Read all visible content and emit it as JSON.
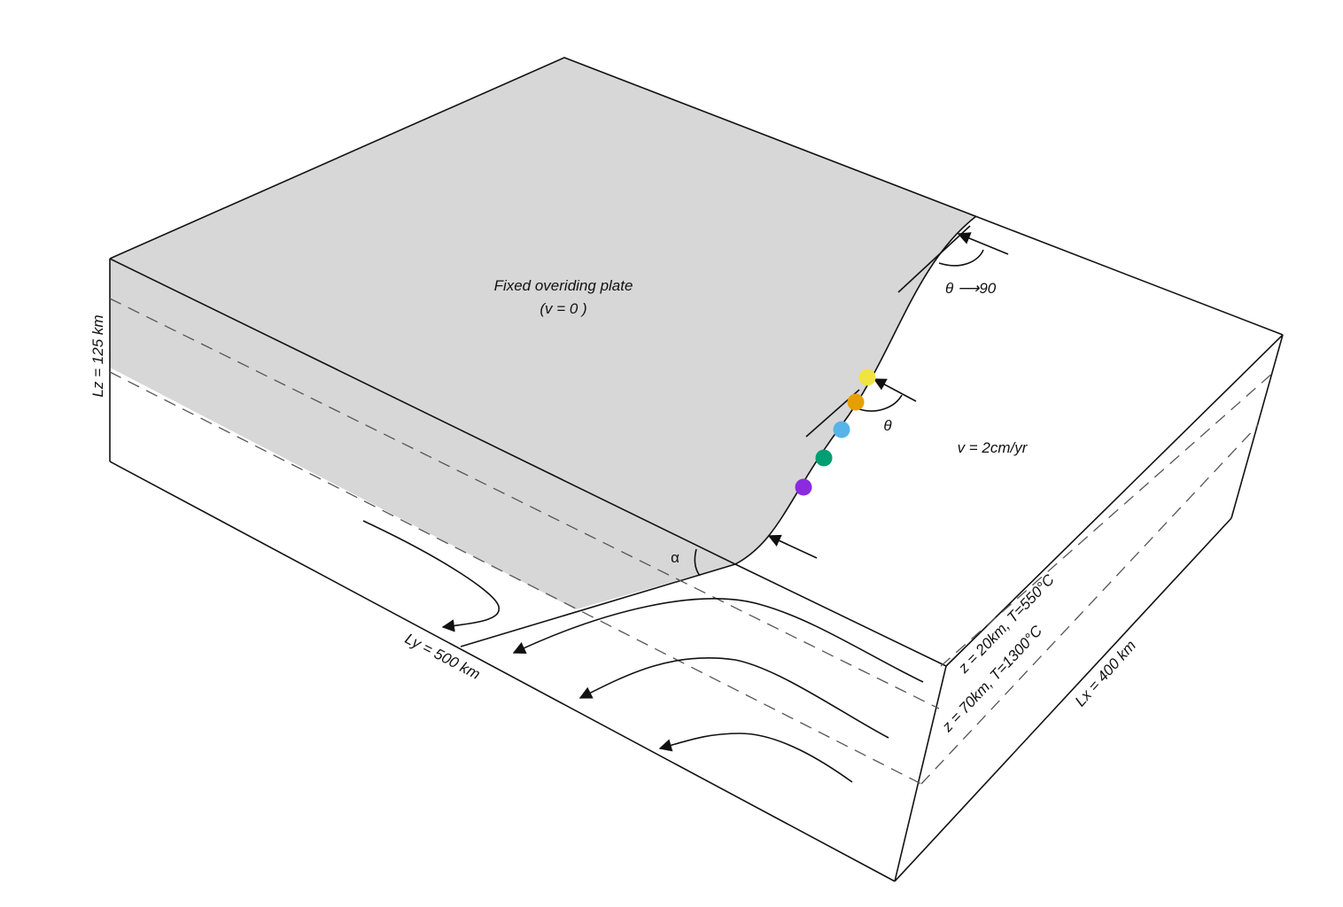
{
  "plate_label": {
    "line1": "Fixed overiding plate",
    "line2": "(v = 0 )"
  },
  "velocity_label": "v = 2cm/yr",
  "theta_label": "θ",
  "theta_limit_label": "θ ⟶90",
  "alpha_label": "α",
  "dimensions": {
    "lz": "Lz = 125 km",
    "ly": "Ly = 500 km",
    "lx": "Lx = 400 km"
  },
  "isotherms": {
    "shallow": "z = 20km, T=550°C",
    "deep": "z = 70km, T=1300°C"
  },
  "colors": {
    "plate_fill": "#d7d7d7",
    "edge": "#111111",
    "dash": "#555555",
    "markers": [
      "#f0e442",
      "#e69f00",
      "#56b4e9",
      "#009e73",
      "#8a2be2"
    ]
  }
}
